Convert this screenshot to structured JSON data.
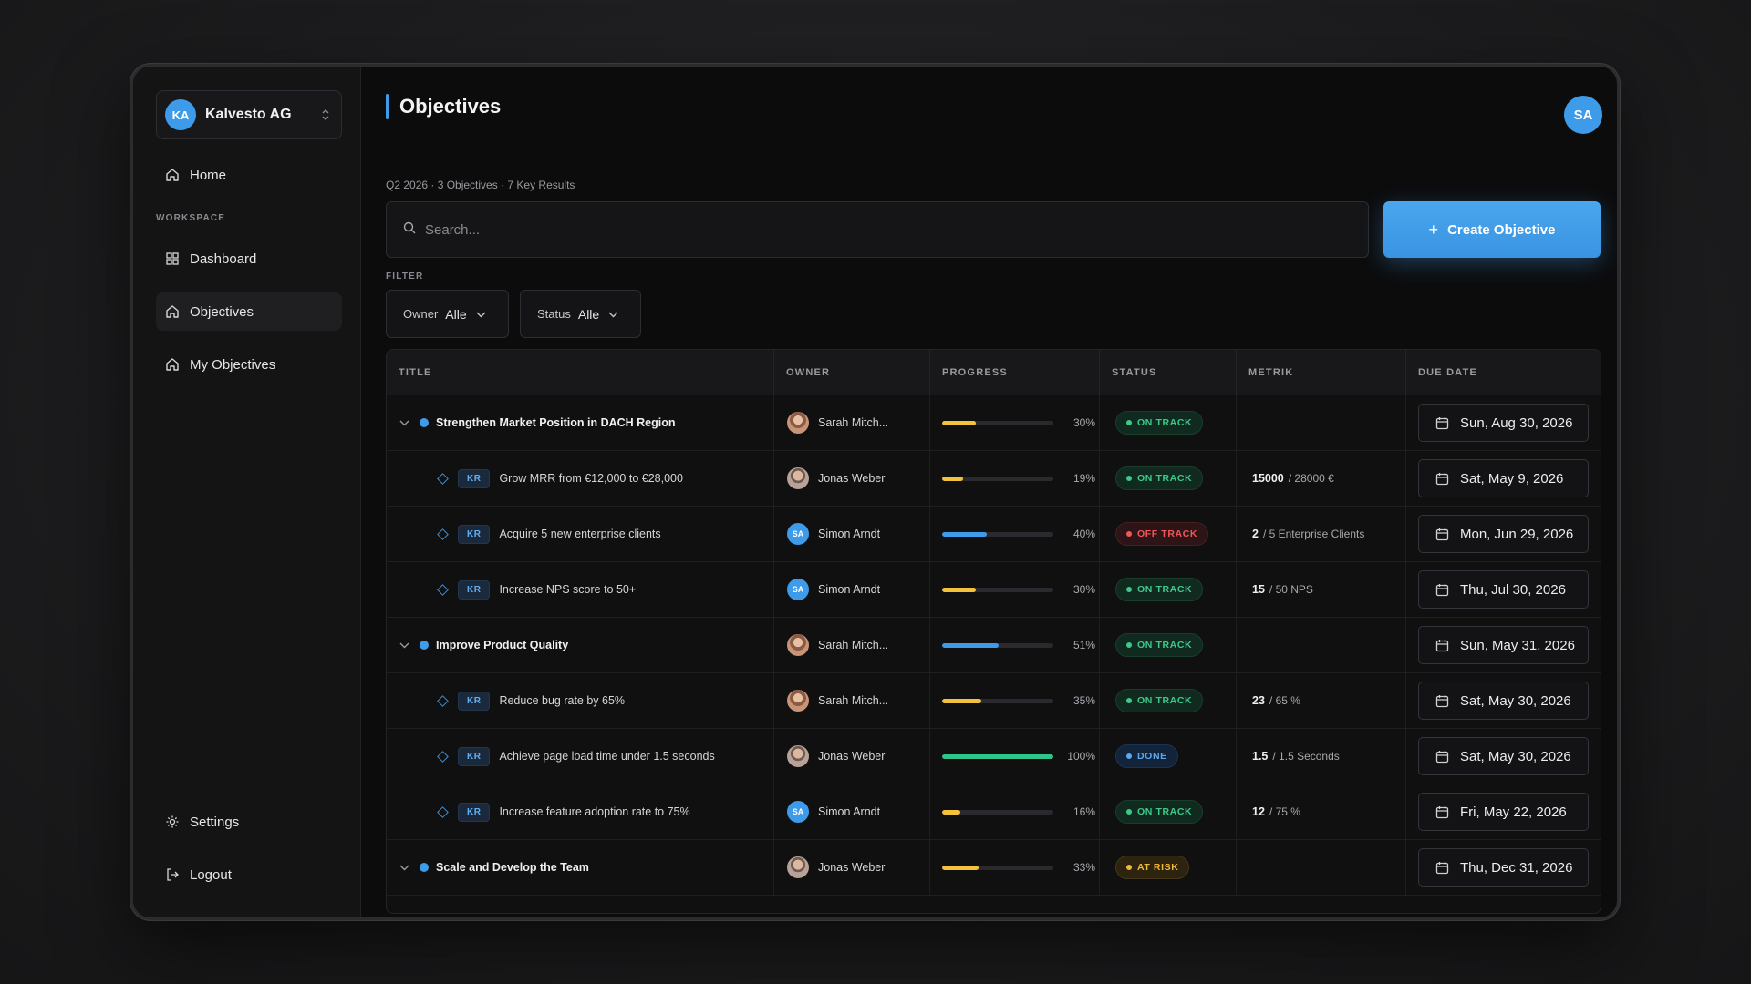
{
  "org": {
    "initials": "KA",
    "name": "Kalvesto AG"
  },
  "nav": {
    "home": "Home",
    "workspace_label": "WORKSPACE",
    "dashboard": "Dashboard",
    "objectives": "Objectives",
    "my_objectives": "My Objectives",
    "settings": "Settings",
    "logout": "Logout"
  },
  "header": {
    "title": "Objectives",
    "user_initials": "SA"
  },
  "subinfo": "Q2 2026 · 3 Objectives · 7 Key Results",
  "search": {
    "placeholder": "Search..."
  },
  "create_button": "Create Objective",
  "filter": {
    "label": "FILTER",
    "owner_label": "Owner",
    "owner_value": "Alle",
    "status_label": "Status",
    "status_value": "Alle"
  },
  "table": {
    "columns": [
      "TITLE",
      "OWNER",
      "PROGRESS",
      "STATUS",
      "METRIK",
      "DUE DATE"
    ],
    "kr_badge": "KR",
    "rows": [
      {
        "type": "objective",
        "title": "Strengthen Market Position in DACH Region",
        "owner": "Sarah Mitch...",
        "owner_avatar": "photo-f",
        "progress": 30,
        "progress_label": "30%",
        "progress_color": "#f2c23c",
        "status": "ON TRACK",
        "status_kind": "on",
        "metric_current": "",
        "metric_rest": "",
        "due": "Sun, Aug 30, 2026"
      },
      {
        "type": "kr",
        "title": "Grow MRR from €12,000 to €28,000",
        "owner": "Jonas Weber",
        "owner_avatar": "photo-m",
        "progress": 19,
        "progress_label": "19%",
        "progress_color": "#f2c23c",
        "status": "ON TRACK",
        "status_kind": "on",
        "metric_current": "15000",
        "metric_rest": "/ 28000 €",
        "due": "Sat, May 9, 2026"
      },
      {
        "type": "kr",
        "title": "Acquire 5 new enterprise clients",
        "owner": "Simon Arndt",
        "owner_avatar": "initials",
        "owner_initials": "SA",
        "progress": 40,
        "progress_label": "40%",
        "progress_color": "#3d9be9",
        "status": "OFF TRACK",
        "status_kind": "off",
        "metric_current": "2",
        "metric_rest": "/ 5 Enterprise Clients",
        "due": "Mon, Jun 29, 2026"
      },
      {
        "type": "kr",
        "title": "Increase NPS score to 50+",
        "owner": "Simon Arndt",
        "owner_avatar": "initials",
        "owner_initials": "SA",
        "progress": 30,
        "progress_label": "30%",
        "progress_color": "#f2c23c",
        "status": "ON TRACK",
        "status_kind": "on",
        "metric_current": "15",
        "metric_rest": "/ 50 NPS",
        "due": "Thu, Jul 30, 2026"
      },
      {
        "type": "objective",
        "title": "Improve Product Quality",
        "owner": "Sarah Mitch...",
        "owner_avatar": "photo-f",
        "progress": 51,
        "progress_label": "51%",
        "progress_color": "#3d9be9",
        "status": "ON TRACK",
        "status_kind": "on",
        "metric_current": "",
        "metric_rest": "",
        "due": "Sun, May 31, 2026"
      },
      {
        "type": "kr",
        "title": "Reduce bug rate by 65%",
        "owner": "Sarah Mitch...",
        "owner_avatar": "photo-f",
        "progress": 35,
        "progress_label": "35%",
        "progress_color": "#f2c23c",
        "status": "ON TRACK",
        "status_kind": "on",
        "metric_current": "23",
        "metric_rest": "/ 65 %",
        "due": "Sat, May 30, 2026"
      },
      {
        "type": "kr",
        "title": "Achieve page load time under 1.5 seconds",
        "owner": "Jonas Weber",
        "owner_avatar": "photo-m",
        "progress": 100,
        "progress_label": "100%",
        "progress_color": "#2fc48a",
        "status": "DONE",
        "status_kind": "done",
        "metric_current": "1.5",
        "metric_rest": "/ 1.5 Seconds",
        "due": "Sat, May 30, 2026"
      },
      {
        "type": "kr",
        "title": "Increase feature adoption rate to 75%",
        "owner": "Simon Arndt",
        "owner_avatar": "initials",
        "owner_initials": "SA",
        "progress": 16,
        "progress_label": "16%",
        "progress_color": "#f2c23c",
        "status": "ON TRACK",
        "status_kind": "on",
        "metric_current": "12",
        "metric_rest": "/ 75 %",
        "due": "Fri, May 22, 2026"
      },
      {
        "type": "objective",
        "title": "Scale and Develop the Team",
        "owner": "Jonas Weber",
        "owner_avatar": "photo-m",
        "progress": 33,
        "progress_label": "33%",
        "progress_color": "#f2c23c",
        "status": "AT RISK",
        "status_kind": "risk",
        "metric_current": "",
        "metric_rest": "",
        "due": "Thu, Dec 31, 2026"
      }
    ]
  },
  "icons": [
    "home-icon",
    "dashboard-icon",
    "objectives-icon",
    "settings-icon",
    "logout-icon",
    "search-icon",
    "calendar-icon",
    "chevron-down-icon",
    "diamond-icon"
  ]
}
